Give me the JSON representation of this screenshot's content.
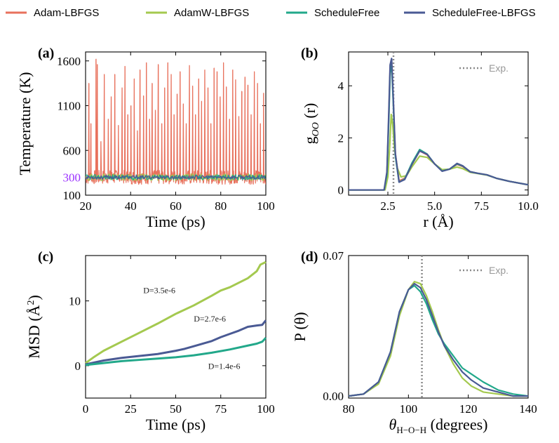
{
  "colors": {
    "adam_lbfgs": "#e8715c",
    "adamw_lbfgs": "#a4c94f",
    "schedulefree": "#22a88a",
    "schedulefree_lbfgs": "#4a5a94",
    "exp": "#8a8a8a",
    "highlight": "#9b30ff"
  },
  "legend": [
    {
      "name": "Adam-LBFGS",
      "color_key": "adam_lbfgs"
    },
    {
      "name": "AdamW-LBFGS",
      "color_key": "adamw_lbfgs"
    },
    {
      "name": "ScheduleFree",
      "color_key": "schedulefree"
    },
    {
      "name": "ScheduleFree-LBFGS",
      "color_key": "schedulefree_lbfgs"
    }
  ],
  "chart_data": [
    {
      "panel": "(a)",
      "type": "line",
      "xlabel": "Time (ps)",
      "ylabel": "Temperature (K)",
      "xlim": [
        20,
        100
      ],
      "ylim": [
        100,
        1700
      ],
      "xticks": [
        20,
        40,
        60,
        80,
        100
      ],
      "yticks": [
        100,
        600,
        1100,
        1600
      ],
      "highlight_ytick": 300,
      "baseline": 300,
      "spike_times": [
        21.5,
        22.4,
        24.6,
        25.2,
        26.8,
        28.3,
        30.1,
        31.4,
        33.0,
        34.6,
        36.2,
        37.5,
        38.8,
        40.1,
        41.6,
        43.0,
        44.2,
        45.7,
        47.0,
        48.4,
        49.6,
        51.0,
        52.3,
        53.8,
        55.1,
        56.5,
        58.0,
        59.3,
        60.6,
        62.0,
        63.4,
        64.7,
        66.1,
        67.5,
        68.8,
        70.2,
        71.5,
        72.9,
        74.3,
        75.6,
        77.0,
        78.4,
        79.7,
        81.2,
        82.5,
        83.9,
        85.3,
        86.6,
        88.0,
        89.4,
        90.8,
        92.1,
        93.5,
        94.9,
        96.3,
        97.6,
        99.0
      ],
      "spike_values": [
        1350,
        900,
        1620,
        1560,
        700,
        1450,
        950,
        1200,
        1450,
        880,
        1300,
        1540,
        1000,
        1100,
        1400,
        820,
        1500,
        1210,
        1580,
        950,
        1350,
        1050,
        1560,
        900,
        1300,
        1580,
        1450,
        1000,
        1230,
        1480,
        1120,
        900,
        1550,
        1320,
        1000,
        1400,
        1150,
        1500,
        1300,
        900,
        1520,
        1480,
        1200,
        1580,
        1310,
        950,
        1500,
        1390,
        980,
        1260,
        1420,
        1330,
        1000,
        1480,
        1350,
        900,
        1240
      ],
      "series": [
        {
          "name": "Adam-LBFGS",
          "band": [
            180,
            400
          ]
        },
        {
          "name": "AdamW-LBFGS",
          "band": [
            260,
            340
          ]
        },
        {
          "name": "ScheduleFree",
          "band": [
            270,
            330
          ]
        },
        {
          "name": "ScheduleFree-LBFGS",
          "band": [
            280,
            320
          ]
        }
      ]
    },
    {
      "panel": "(b)",
      "type": "line",
      "xlabel": "r (Å)",
      "ylabel_main": "g",
      "ylabel_sub": "OO",
      "ylabel_tail": " (r)",
      "xlim": [
        0.4,
        10.0
      ],
      "ylim": [
        -0.2,
        5.3
      ],
      "xticks": [
        2.5,
        5.0,
        7.5,
        10.0
      ],
      "xtick_labels": [
        "2.5",
        "5.0",
        "7.5",
        "10.0"
      ],
      "yticks": [
        0,
        2,
        4
      ],
      "exp_x": 2.8,
      "exp_label": "Exp.",
      "series": [
        {
          "name": "Adam-LBFGS",
          "x": [
            0.4,
            2.3,
            2.45,
            2.55,
            2.62,
            2.7,
            2.78,
            2.9,
            3.1,
            3.4,
            3.8,
            4.2,
            4.6,
            5.0,
            5.4,
            5.8,
            6.2,
            6.5,
            6.9,
            7.3,
            7.8,
            8.3,
            9.0,
            10.0
          ],
          "y": [
            0,
            0,
            0.6,
            2.8,
            4.6,
            4.9,
            3.6,
            1.4,
            0.35,
            0.45,
            1.0,
            1.5,
            1.35,
            1.0,
            0.75,
            0.8,
            0.98,
            0.9,
            0.7,
            0.64,
            0.58,
            0.45,
            0.33,
            0.2
          ]
        },
        {
          "name": "AdamW-LBFGS",
          "x": [
            0.4,
            2.35,
            2.5,
            2.6,
            2.68,
            2.76,
            2.85,
            3.0,
            3.2,
            3.5,
            3.8,
            4.2,
            4.6,
            5.0,
            5.4,
            5.8,
            6.2,
            6.5,
            6.9,
            7.3,
            7.8,
            8.3,
            9.0,
            10.0
          ],
          "y": [
            0,
            0,
            0.5,
            1.7,
            2.9,
            2.5,
            1.6,
            0.85,
            0.5,
            0.55,
            0.9,
            1.3,
            1.25,
            1.0,
            0.78,
            0.8,
            0.88,
            0.82,
            0.68,
            0.63,
            0.57,
            0.45,
            0.33,
            0.2
          ]
        },
        {
          "name": "ScheduleFree",
          "x": [
            0.4,
            2.3,
            2.45,
            2.55,
            2.62,
            2.7,
            2.78,
            2.9,
            3.1,
            3.4,
            3.8,
            4.2,
            4.6,
            5.0,
            5.4,
            5.8,
            6.2,
            6.5,
            6.9,
            7.3,
            7.8,
            8.3,
            9.0,
            10.0
          ],
          "y": [
            0,
            0,
            0.6,
            2.7,
            4.5,
            4.8,
            3.5,
            1.3,
            0.3,
            0.42,
            1.05,
            1.55,
            1.38,
            1.0,
            0.73,
            0.8,
            1.0,
            0.92,
            0.7,
            0.64,
            0.58,
            0.45,
            0.33,
            0.2
          ]
        },
        {
          "name": "ScheduleFree-LBFGS",
          "x": [
            0.4,
            2.3,
            2.45,
            2.55,
            2.62,
            2.7,
            2.78,
            2.9,
            3.1,
            3.4,
            3.8,
            4.2,
            4.6,
            5.0,
            5.4,
            5.8,
            6.2,
            6.5,
            6.9,
            7.3,
            7.8,
            8.3,
            9.0,
            10.0
          ],
          "y": [
            0,
            0,
            0.7,
            3.0,
            4.8,
            5.05,
            3.7,
            1.4,
            0.3,
            0.4,
            1.0,
            1.5,
            1.37,
            1.0,
            0.72,
            0.8,
            1.02,
            0.93,
            0.7,
            0.64,
            0.58,
            0.45,
            0.33,
            0.2
          ]
        }
      ]
    },
    {
      "panel": "(c)",
      "type": "line",
      "xlabel": "Time (ps)",
      "ylabel": "MSD (Å",
      "ylabel_sup": "2",
      "ylabel_tail": ")",
      "xlim": [
        0,
        100
      ],
      "ylim": [
        -5,
        17
      ],
      "xticks": [
        0,
        25,
        50,
        75,
        100
      ],
      "yticks": [
        0,
        10
      ],
      "annotations": [
        {
          "text": "D=3.5e-6",
          "x": 32,
          "y": 11.2
        },
        {
          "text": "D=2.7e-6",
          "x": 60,
          "y": 6.8
        },
        {
          "text": "D=1.4e-6",
          "x": 68,
          "y": -0.5
        }
      ],
      "series": [
        {
          "name": "AdamW-LBFGS",
          "x": [
            0,
            5,
            10,
            20,
            30,
            40,
            50,
            60,
            70,
            75,
            80,
            90,
            95,
            97,
            100
          ],
          "y": [
            0.4,
            1.4,
            2.3,
            3.7,
            5.1,
            6.5,
            8.0,
            9.3,
            10.8,
            11.6,
            12.1,
            13.5,
            14.6,
            15.6,
            16.0
          ]
        },
        {
          "name": "ScheduleFree-LBFGS",
          "x": [
            0,
            10,
            20,
            30,
            40,
            50,
            55,
            60,
            70,
            75,
            80,
            85,
            90,
            95,
            98,
            100
          ],
          "y": [
            0.2,
            0.8,
            1.2,
            1.5,
            1.8,
            2.3,
            2.6,
            3.0,
            3.8,
            4.4,
            4.9,
            5.4,
            6.0,
            6.2,
            6.3,
            7.0
          ]
        },
        {
          "name": "ScheduleFree",
          "x": [
            0,
            10,
            20,
            30,
            40,
            50,
            60,
            70,
            80,
            90,
            95,
            98,
            100
          ],
          "y": [
            0.1,
            0.4,
            0.7,
            0.9,
            1.1,
            1.3,
            1.6,
            2.0,
            2.5,
            3.1,
            3.4,
            3.7,
            4.3
          ]
        }
      ]
    },
    {
      "panel": "(d)",
      "type": "line",
      "xlabel_main": "θ",
      "xlabel_sub": "H−O−H",
      "xlabel_tail": " (degrees)",
      "ylabel": "P (θ)",
      "xlim": [
        80,
        140
      ],
      "ylim": [
        -0.001,
        0.07
      ],
      "xticks": [
        80,
        100,
        120,
        140
      ],
      "yticks": [
        0.0,
        0.07
      ],
      "ytick_labels": [
        "0.00",
        "0.07"
      ],
      "exp_x": 104.5,
      "exp_label": "Exp.",
      "series": [
        {
          "name": "AdamW-LBFGS",
          "x": [
            80,
            85,
            90,
            94,
            97,
            100,
            102,
            104,
            106,
            108,
            110,
            112,
            115,
            118,
            121,
            125,
            130,
            135,
            140
          ],
          "y": [
            0.0,
            0.001,
            0.006,
            0.02,
            0.04,
            0.053,
            0.057,
            0.056,
            0.05,
            0.042,
            0.033,
            0.025,
            0.016,
            0.009,
            0.005,
            0.002,
            0.001,
            0.0,
            0.0
          ]
        },
        {
          "name": "ScheduleFree",
          "x": [
            80,
            85,
            90,
            94,
            97,
            100,
            102,
            104,
            106,
            108,
            110,
            112,
            115,
            118,
            121,
            125,
            130,
            135,
            140
          ],
          "y": [
            0.0,
            0.001,
            0.007,
            0.022,
            0.042,
            0.053,
            0.055,
            0.052,
            0.046,
            0.038,
            0.031,
            0.026,
            0.02,
            0.014,
            0.011,
            0.007,
            0.003,
            0.001,
            0.0
          ]
        },
        {
          "name": "ScheduleFree-LBFGS",
          "x": [
            80,
            85,
            90,
            94,
            97,
            100,
            102,
            104,
            106,
            108,
            110,
            112,
            115,
            118,
            121,
            125,
            130,
            135,
            140
          ],
          "y": [
            0.0,
            0.001,
            0.007,
            0.022,
            0.042,
            0.053,
            0.056,
            0.054,
            0.048,
            0.04,
            0.032,
            0.025,
            0.018,
            0.012,
            0.008,
            0.004,
            0.002,
            0.0,
            0.0
          ]
        }
      ]
    }
  ]
}
